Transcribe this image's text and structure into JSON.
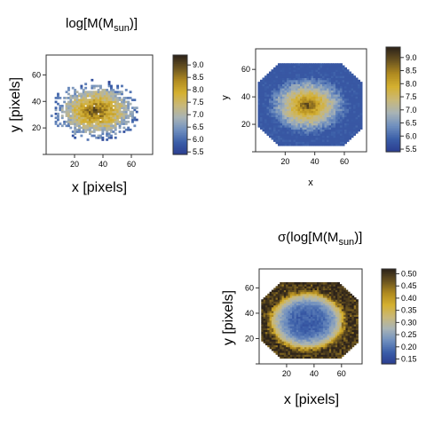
{
  "chart_data": [
    {
      "id": "mass-map",
      "type": "heatmap",
      "title_main": "log[M(M",
      "title_sub": "sun",
      "title_close": ")]",
      "xlabel": "x [pixels]",
      "ylabel": "y [pixels]",
      "x_ticks": [
        20,
        40,
        60
      ],
      "y_ticks": [
        20,
        40,
        60
      ],
      "xlim": [
        0,
        75
      ],
      "ylim": [
        0,
        75
      ],
      "colorbar": {
        "ticks": [
          "5.5",
          "6.0",
          "6.5",
          "7.0",
          "7.5",
          "8.0",
          "8.5",
          "9.0"
        ],
        "range": [
          5.4,
          9.4
        ]
      },
      "field": {
        "center_x": 35,
        "center_y": 33,
        "radius_x": 31,
        "radius_y": 22,
        "peak": 9.1,
        "edge": 6.0,
        "style": "noisy"
      }
    },
    {
      "id": "smoothed-mass-map",
      "type": "heatmap",
      "title_main": "",
      "xlabel": "x",
      "ylabel": "y",
      "x_ticks": [
        20,
        40,
        60
      ],
      "y_ticks": [
        20,
        40,
        60
      ],
      "xlim": [
        0,
        75
      ],
      "ylim": [
        0,
        75
      ],
      "colorbar": {
        "ticks": [
          "5.5",
          "6.0",
          "6.5",
          "7.0",
          "7.5",
          "8.0",
          "8.5",
          "9.0"
        ],
        "range": [
          5.4,
          9.4
        ]
      },
      "field": {
        "center_x": 35,
        "center_y": 34,
        "peak": 9.2,
        "edge": 6.0,
        "style": "octagon-mass"
      }
    },
    {
      "id": "sigma-map",
      "type": "heatmap",
      "title_main": "σ(log[M(M",
      "title_sub": "sun",
      "title_close": ")]",
      "xlabel": "x [pixels]",
      "ylabel": "y [pixels]",
      "x_ticks": [
        20,
        40,
        60
      ],
      "y_ticks": [
        20,
        40,
        60
      ],
      "xlim": [
        0,
        75
      ],
      "ylim": [
        0,
        75
      ],
      "colorbar": {
        "ticks": [
          "0.15",
          "0.20",
          "0.25",
          "0.30",
          "0.35",
          "0.40",
          "0.45",
          "0.50"
        ],
        "range": [
          0.13,
          0.52
        ]
      },
      "field": {
        "center_x": 35,
        "center_y": 34,
        "min": 0.17,
        "max": 0.45,
        "style": "octagon-sigma"
      }
    }
  ],
  "colormap": [
    "#2a3c8f",
    "#3b5ea8",
    "#6f8fbf",
    "#a8b3b6",
    "#c9b878",
    "#d4b030",
    "#b08a20",
    "#6a5420",
    "#2d231a"
  ]
}
